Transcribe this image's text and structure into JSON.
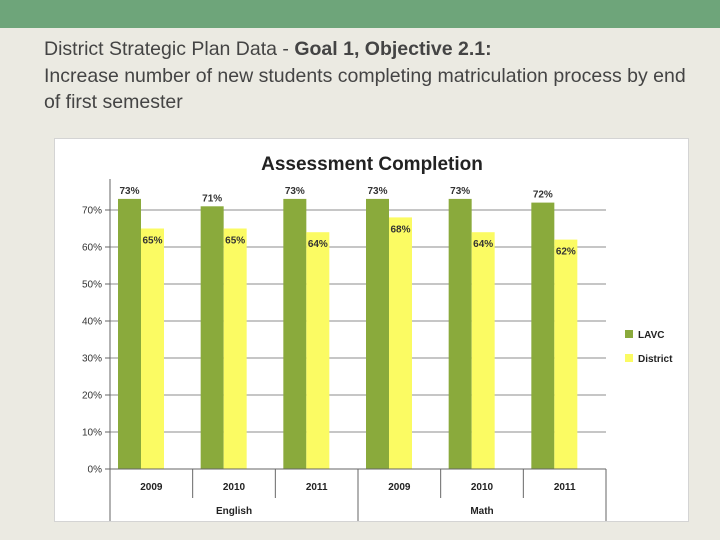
{
  "slide": {
    "title_prefix": "District Strategic Plan Data - ",
    "title_goal": "Goal 1, Objective 2.1:",
    "title_rest": "Increase number of new students completing matriculation process by end of first semester"
  },
  "colors": {
    "top_bar": "#6ea57a",
    "background": "#ebeae2",
    "lavc": "#8aaa3c",
    "district": "#fbfb63"
  },
  "chart_data": {
    "type": "bar",
    "title": "Assessment Completion",
    "xlabel": "",
    "ylabel": "",
    "ylim": [
      0,
      80
    ],
    "yticks": [
      "0%",
      "10%",
      "20%",
      "30%",
      "40%",
      "50%",
      "60%",
      "70%"
    ],
    "grid": true,
    "legend_position": "right",
    "groups": [
      {
        "name": "English",
        "categories": [
          "2009",
          "2010",
          "2011"
        ]
      },
      {
        "name": "Math",
        "categories": [
          "2009",
          "2010",
          "2011"
        ]
      }
    ],
    "categories": [
      "2009",
      "2010",
      "2011",
      "2009",
      "2010",
      "2011"
    ],
    "series": [
      {
        "name": "LAVC",
        "values": [
          73,
          71,
          73,
          73,
          73,
          72
        ],
        "labels": [
          "73%",
          "71%",
          "73%",
          "73%",
          "73%",
          "72%"
        ]
      },
      {
        "name": "District",
        "values": [
          65,
          65,
          64,
          68,
          64,
          62
        ],
        "labels": [
          "65%",
          "65%",
          "64%",
          "68%",
          "64%",
          "62%"
        ]
      }
    ]
  }
}
